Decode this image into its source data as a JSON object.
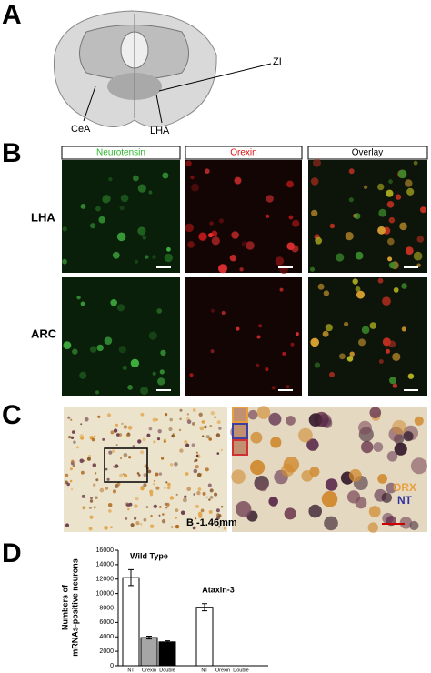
{
  "panels": {
    "A": {
      "label": "A",
      "annotations": [
        "ZI",
        "CeA",
        "LHA"
      ]
    },
    "B": {
      "label": "B",
      "columns": [
        "Neurotensin",
        "Orexin",
        "Overlay"
      ],
      "rows": [
        "LHA",
        "ARC"
      ]
    },
    "C": {
      "label": "C",
      "annotation": "B -1.46mm",
      "legend": [
        "ORX",
        "NT"
      ]
    },
    "D": {
      "label": "D"
    }
  },
  "chart_data": {
    "type": "bar",
    "ylabel": [
      "Numbers of",
      "mRNAs-positive neurons"
    ],
    "groups": [
      "Wild Type",
      "Ataxin-3"
    ],
    "categories": [
      "NT",
      "Orexin",
      "Double",
      "NT",
      "Orexin",
      "Double"
    ],
    "values": [
      12200,
      3900,
      3300,
      8100,
      0,
      0
    ],
    "errors": [
      1100,
      200,
      150,
      500,
      0,
      0
    ],
    "colors": [
      "#ffffff",
      "#a6a6a6",
      "#000000",
      "#ffffff",
      "#ffffff",
      "#ffffff"
    ],
    "ylim": [
      0,
      16000
    ],
    "yticks": [
      0,
      2000,
      4000,
      6000,
      8000,
      10000,
      12000,
      14000,
      16000
    ]
  }
}
